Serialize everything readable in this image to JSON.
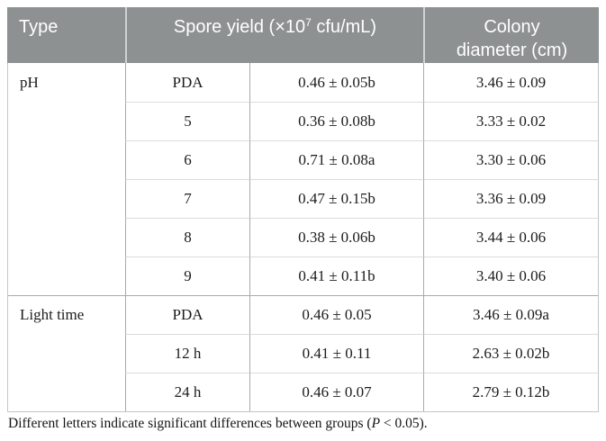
{
  "colors": {
    "header_bg": "#8d9192",
    "header_text": "#ffffff",
    "grid_line": "#a7abab",
    "row_divider": "#d9dbdb"
  },
  "table": {
    "header": {
      "type": "Type",
      "spore_prefix": "Spore yield (×10",
      "spore_sup": "7",
      "spore_suffix": " cfu/mL)",
      "colony": "Colony diameter (cm)"
    },
    "groups": [
      {
        "label": "pH",
        "rows": [
          {
            "condition": "PDA",
            "spore": "0.46 ± 0.05b",
            "colony": "3.46 ± 0.09"
          },
          {
            "condition": "5",
            "spore": "0.36 ± 0.08b",
            "colony": "3.33 ± 0.02"
          },
          {
            "condition": "6",
            "spore": "0.71 ± 0.08a",
            "colony": "3.30 ± 0.06"
          },
          {
            "condition": "7",
            "spore": "0.47 ± 0.15b",
            "colony": "3.36 ± 0.09"
          },
          {
            "condition": "8",
            "spore": "0.38 ± 0.06b",
            "colony": "3.44 ± 0.06"
          },
          {
            "condition": "9",
            "spore": "0.41 ± 0.11b",
            "colony": "3.40 ± 0.06"
          }
        ]
      },
      {
        "label": "Light time",
        "rows": [
          {
            "condition": "PDA",
            "spore": "0.46 ± 0.05",
            "colony": "3.46 ± 0.09a"
          },
          {
            "condition": "12 h",
            "spore": "0.41 ± 0.11",
            "colony": "2.63 ± 0.02b"
          },
          {
            "condition": "24 h",
            "spore": "0.46 ± 0.07",
            "colony": "2.79 ± 0.12b"
          }
        ]
      }
    ],
    "footnote": {
      "prefix": "Different letters indicate significant differences between groups (",
      "italic": "P",
      "suffix": " < 0.05)."
    }
  }
}
